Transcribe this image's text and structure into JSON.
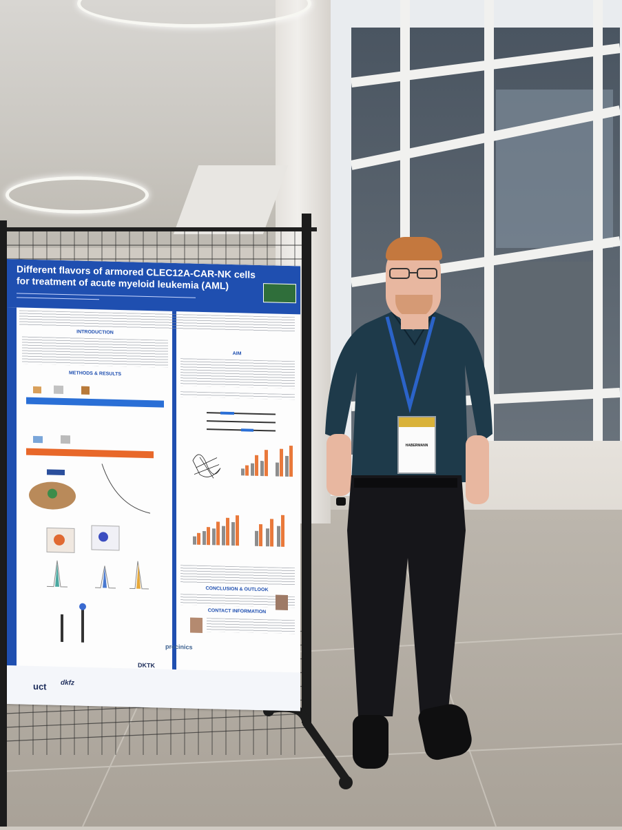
{
  "poster": {
    "title": "Different flavors of armored CLEC12A-CAR-NK cells for treatment of acute myeloid leukemia (AML)",
    "sections": {
      "introduction": "INTRODUCTION",
      "aim": "AIM",
      "methods": "METHODS & RESULTS",
      "conclusion": "CONCLUSION & OUTLOOK",
      "contact": "CONTACT INFORMATION"
    },
    "footer_logos": [
      "uct",
      "dkfz",
      "DKTK",
      "precinics"
    ]
  },
  "badge": {
    "name": "HABERMANN"
  },
  "colors": {
    "poster_blue": "#1f4fb0",
    "shirt": "#1e3a4a",
    "lanyard": "#2b63c9",
    "hair": "#c4783e",
    "bar_orange": "#e9793b",
    "bar_gray": "#8d8d8d"
  }
}
